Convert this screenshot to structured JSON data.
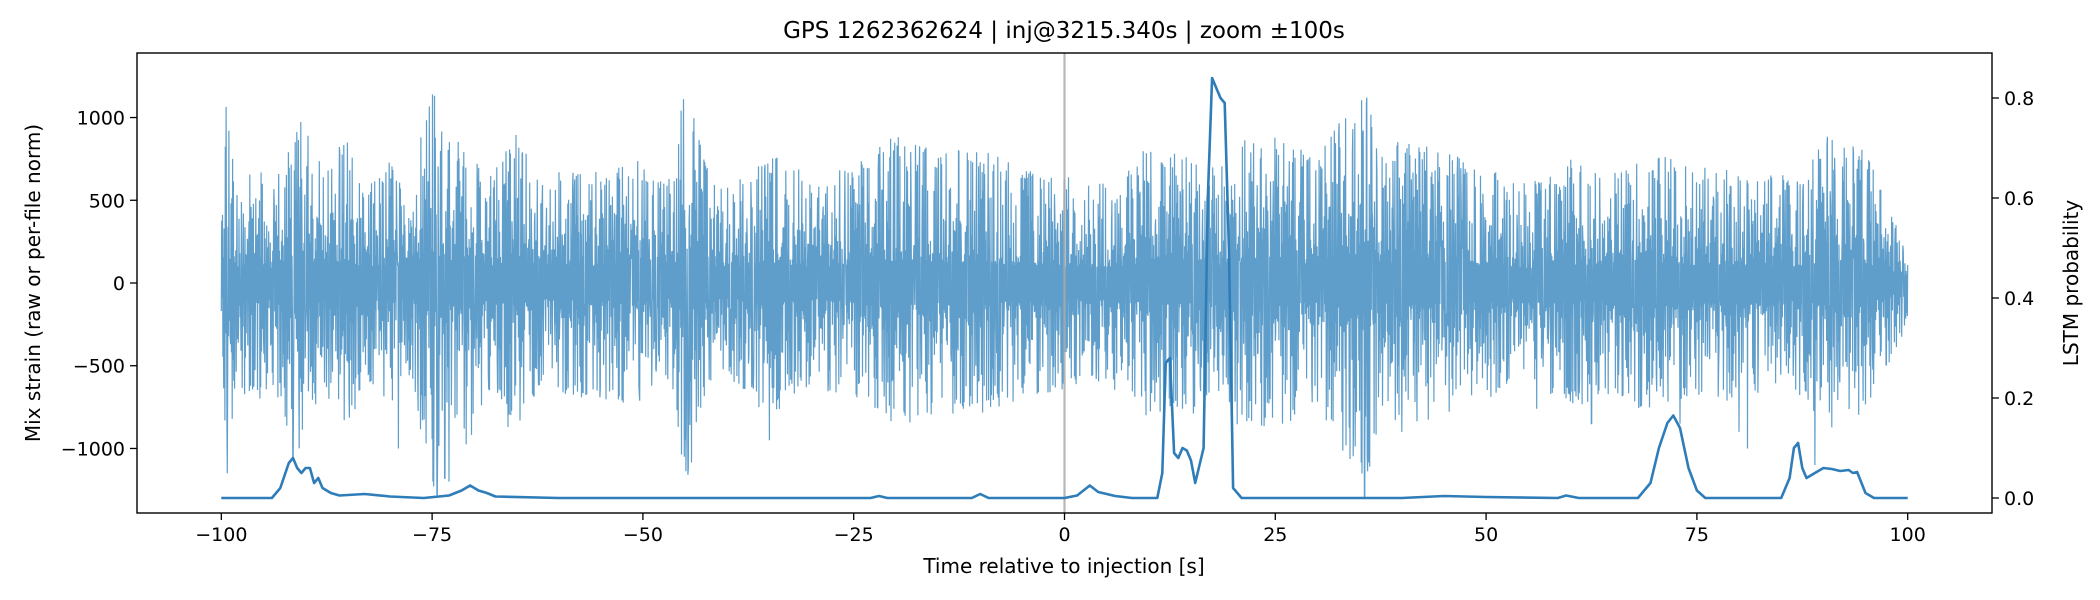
{
  "chart_data": {
    "type": "line",
    "title": "GPS 1262362624 | inj@3215.340s | zoom ±100s",
    "xlabel": "Time relative to injection [s]",
    "ylabel": "Mix strain (raw or per-file norm)",
    "y2label": "LSTM probability",
    "xlim": [
      -110,
      110
    ],
    "ylim": [
      -1390,
      1390
    ],
    "y2lim": [
      -0.03,
      0.89
    ],
    "xticks": [
      -100,
      -75,
      -50,
      -25,
      0,
      25,
      50,
      75,
      100
    ],
    "xtick_labels": [
      "−100",
      "−75",
      "−50",
      "−25",
      "0",
      "25",
      "50",
      "75",
      "100"
    ],
    "yticks": [
      -1000,
      -500,
      0,
      500,
      1000
    ],
    "ytick_labels": [
      "−1000",
      "−500",
      "0",
      "500",
      "1000"
    ],
    "y2ticks": [
      0.0,
      0.2,
      0.4,
      0.6,
      0.8
    ],
    "y2tick_labels": [
      "0.0",
      "0.2",
      "0.4",
      "0.6",
      "0.8"
    ],
    "grid": false,
    "injection_marker_x": 0,
    "colors": {
      "strain": "#4e93c4",
      "probability": "#2f7db8",
      "injection_line": "#aaaaaa",
      "axes": "#000000"
    },
    "series": [
      {
        "axis": "left",
        "x_range": [
          -100,
          100
        ],
        "envelope": [
          [
            -100,
            300
          ],
          [
            -99.5,
            1130
          ],
          [
            -98,
            650
          ],
          [
            -96,
            750
          ],
          [
            -94,
            600
          ],
          [
            -92,
            960
          ],
          [
            -90,
            1050
          ],
          [
            -88,
            680
          ],
          [
            -85,
            900
          ],
          [
            -83,
            600
          ],
          [
            -80,
            750
          ],
          [
            -78,
            500
          ],
          [
            -75,
            1230
          ],
          [
            -73,
            850
          ],
          [
            -71,
            1000
          ],
          [
            -68,
            650
          ],
          [
            -65,
            900
          ],
          [
            -62,
            600
          ],
          [
            -60,
            700
          ],
          [
            -55,
            700
          ],
          [
            -50,
            750
          ],
          [
            -47,
            600
          ],
          [
            -45,
            1240
          ],
          [
            -42,
            650
          ],
          [
            -40,
            600
          ],
          [
            -35,
            800
          ],
          [
            -30,
            650
          ],
          [
            -25,
            700
          ],
          [
            -20,
            900
          ],
          [
            -15,
            800
          ],
          [
            -10,
            820
          ],
          [
            -5,
            700
          ],
          [
            0,
            650
          ],
          [
            5,
            650
          ],
          [
            8,
            700
          ],
          [
            10,
            850
          ],
          [
            15,
            800
          ],
          [
            18,
            700
          ],
          [
            20,
            850
          ],
          [
            25,
            900
          ],
          [
            30,
            750
          ],
          [
            35.5,
            1250
          ],
          [
            38,
            750
          ],
          [
            40,
            900
          ],
          [
            45,
            800
          ],
          [
            50,
            700
          ],
          [
            55,
            600
          ],
          [
            60,
            750
          ],
          [
            65,
            700
          ],
          [
            70,
            800
          ],
          [
            75,
            700
          ],
          [
            80,
            720
          ],
          [
            85,
            650
          ],
          [
            88,
            700
          ],
          [
            90,
            900
          ],
          [
            95,
            800
          ],
          [
            100,
            250
          ]
        ],
        "spikes": [
          [
            -99.3,
            -1150
          ],
          [
            -91.5,
            -1050
          ],
          [
            -79,
            -1000
          ],
          [
            -74.8,
            -1230
          ],
          [
            -74.4,
            -1280
          ],
          [
            -73.5,
            -1180
          ],
          [
            -73,
            -1200
          ],
          [
            -66,
            -870
          ],
          [
            -44.6,
            -1120
          ],
          [
            -35,
            -950
          ],
          [
            -12,
            -760
          ],
          [
            35.6,
            -1300
          ],
          [
            40,
            -900
          ],
          [
            56,
            -760
          ],
          [
            62.5,
            -850
          ],
          [
            73,
            -850
          ],
          [
            80,
            -900
          ],
          [
            81,
            -1000
          ],
          [
            89,
            -1100
          ]
        ]
      },
      {
        "axis": "right",
        "points": [
          [
            -100,
            0.0
          ],
          [
            -94,
            0.0
          ],
          [
            -93,
            0.02
          ],
          [
            -92,
            0.07
          ],
          [
            -91.5,
            0.08
          ],
          [
            -91,
            0.06
          ],
          [
            -90.5,
            0.05
          ],
          [
            -90,
            0.06
          ],
          [
            -89.5,
            0.06
          ],
          [
            -89,
            0.03
          ],
          [
            -88.5,
            0.04
          ],
          [
            -88,
            0.02
          ],
          [
            -87,
            0.01
          ],
          [
            -86,
            0.005
          ],
          [
            -83,
            0.008
          ],
          [
            -80,
            0.003
          ],
          [
            -76,
            0.0
          ],
          [
            -73,
            0.005
          ],
          [
            -71.5,
            0.015
          ],
          [
            -70.5,
            0.025
          ],
          [
            -69.5,
            0.015
          ],
          [
            -68.5,
            0.01
          ],
          [
            -67.5,
            0.003
          ],
          [
            -60,
            0.0
          ],
          [
            -40,
            0.0
          ],
          [
            -23,
            0.0
          ],
          [
            -22,
            0.004
          ],
          [
            -21,
            0.0
          ],
          [
            -11,
            0.0
          ],
          [
            -10,
            0.008
          ],
          [
            -9,
            0.0
          ],
          [
            0,
            0.0
          ],
          [
            1.5,
            0.005
          ],
          [
            3,
            0.025
          ],
          [
            4,
            0.012
          ],
          [
            5,
            0.008
          ],
          [
            6,
            0.004
          ],
          [
            8,
            0.0
          ],
          [
            11,
            0.0
          ],
          [
            11.6,
            0.05
          ],
          [
            12,
            0.27
          ],
          [
            12.5,
            0.28
          ],
          [
            13,
            0.09
          ],
          [
            13.5,
            0.08
          ],
          [
            14,
            0.1
          ],
          [
            14.5,
            0.095
          ],
          [
            15,
            0.075
          ],
          [
            15.5,
            0.03
          ],
          [
            16.5,
            0.1
          ],
          [
            17,
            0.6
          ],
          [
            17.5,
            0.84
          ],
          [
            18,
            0.82
          ],
          [
            18.5,
            0.8
          ],
          [
            19,
            0.79
          ],
          [
            19.5,
            0.5
          ],
          [
            20,
            0.02
          ],
          [
            21,
            0.0
          ],
          [
            40,
            0.0
          ],
          [
            45,
            0.004
          ],
          [
            50,
            0.002
          ],
          [
            58.5,
            0.0
          ],
          [
            59.5,
            0.005
          ],
          [
            61,
            0.0
          ],
          [
            68,
            0.0
          ],
          [
            69.5,
            0.03
          ],
          [
            70.5,
            0.1
          ],
          [
            71.5,
            0.15
          ],
          [
            72.2,
            0.165
          ],
          [
            73,
            0.14
          ],
          [
            74,
            0.06
          ],
          [
            75,
            0.015
          ],
          [
            76,
            0.0
          ],
          [
            85,
            0.0
          ],
          [
            86,
            0.04
          ],
          [
            86.5,
            0.1
          ],
          [
            87,
            0.11
          ],
          [
            87.5,
            0.06
          ],
          [
            88,
            0.04
          ],
          [
            89,
            0.05
          ],
          [
            90,
            0.06
          ],
          [
            91,
            0.058
          ],
          [
            92,
            0.054
          ],
          [
            93,
            0.056
          ],
          [
            93.5,
            0.05
          ],
          [
            94,
            0.052
          ],
          [
            95,
            0.01
          ],
          [
            96,
            0.0
          ],
          [
            100,
            0.0
          ]
        ]
      }
    ]
  }
}
